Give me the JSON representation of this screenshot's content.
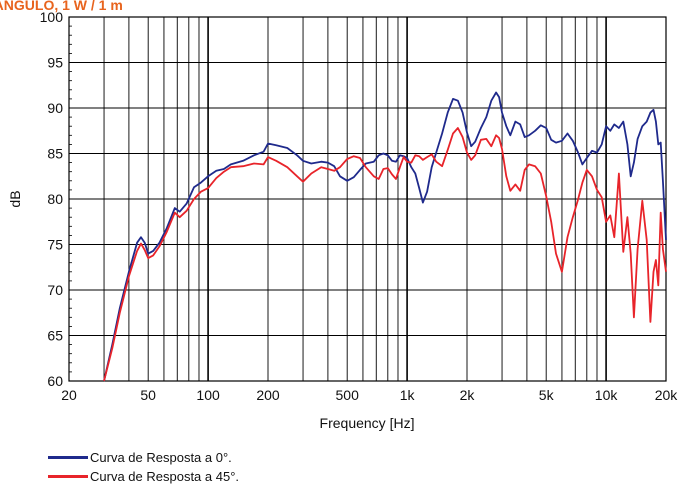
{
  "chart_data": {
    "type": "line",
    "title": "...ÃNGULO, 1 W / 1 m",
    "xlabel": "Frequency [Hz]",
    "ylabel": "dB",
    "xscale": "log",
    "xlim": [
      20,
      20000
    ],
    "ylim": [
      60,
      100
    ],
    "grid": true,
    "legend_position": "bottom-left",
    "x_ticks": [
      {
        "value": 20,
        "label": "20"
      },
      {
        "value": 50,
        "label": "50"
      },
      {
        "value": 100,
        "label": "100"
      },
      {
        "value": 200,
        "label": "200"
      },
      {
        "value": 500,
        "label": "500"
      },
      {
        "value": 1000,
        "label": "1k"
      },
      {
        "value": 2000,
        "label": "2k"
      },
      {
        "value": 5000,
        "label": "5k"
      },
      {
        "value": 10000,
        "label": "10k"
      },
      {
        "value": 20000,
        "label": "20k"
      }
    ],
    "y_ticks": [
      60,
      65,
      70,
      75,
      80,
      85,
      90,
      95,
      100
    ],
    "series": [
      {
        "name": "Curva de Resposta a 0°.",
        "color": "#1f2a8c",
        "points": [
          [
            30,
            60
          ],
          [
            33,
            64
          ],
          [
            36,
            68
          ],
          [
            40,
            72
          ],
          [
            44,
            75.2
          ],
          [
            46,
            75.8
          ],
          [
            48,
            75.2
          ],
          [
            50,
            74
          ],
          [
            53,
            74.3
          ],
          [
            57,
            75.2
          ],
          [
            62,
            76.8
          ],
          [
            68,
            79
          ],
          [
            72,
            78.6
          ],
          [
            78,
            79.5
          ],
          [
            85,
            81.3
          ],
          [
            92,
            81.8
          ],
          [
            100,
            82.5
          ],
          [
            110,
            83.1
          ],
          [
            120,
            83.3
          ],
          [
            130,
            83.8
          ],
          [
            150,
            84.2
          ],
          [
            170,
            84.8
          ],
          [
            190,
            85.2
          ],
          [
            200,
            86.1
          ],
          [
            220,
            85.9
          ],
          [
            250,
            85.6
          ],
          [
            280,
            84.8
          ],
          [
            300,
            84.2
          ],
          [
            330,
            83.9
          ],
          [
            370,
            84.1
          ],
          [
            400,
            84
          ],
          [
            430,
            83.6
          ],
          [
            460,
            82.5
          ],
          [
            500,
            82
          ],
          [
            540,
            82.4
          ],
          [
            580,
            83.2
          ],
          [
            620,
            83.9
          ],
          [
            680,
            84.1
          ],
          [
            720,
            84.8
          ],
          [
            760,
            85
          ],
          [
            800,
            84.8
          ],
          [
            840,
            84.2
          ],
          [
            880,
            84.1
          ],
          [
            920,
            84.8
          ],
          [
            960,
            84.7
          ],
          [
            1000,
            84.5
          ],
          [
            1050,
            83.5
          ],
          [
            1100,
            82.8
          ],
          [
            1150,
            81.2
          ],
          [
            1200,
            79.6
          ],
          [
            1260,
            80.8
          ],
          [
            1330,
            83.5
          ],
          [
            1400,
            85.1
          ],
          [
            1500,
            87.2
          ],
          [
            1600,
            89.5
          ],
          [
            1700,
            91
          ],
          [
            1800,
            90.8
          ],
          [
            1900,
            89.5
          ],
          [
            2000,
            87.3
          ],
          [
            2100,
            85.8
          ],
          [
            2200,
            86.3
          ],
          [
            2350,
            87.8
          ],
          [
            2500,
            89
          ],
          [
            2650,
            90.8
          ],
          [
            2800,
            91.7
          ],
          [
            2900,
            91.2
          ],
          [
            3000,
            89.5
          ],
          [
            3150,
            88
          ],
          [
            3300,
            87
          ],
          [
            3500,
            88.5
          ],
          [
            3700,
            88.2
          ],
          [
            3900,
            86.8
          ],
          [
            4100,
            87
          ],
          [
            4400,
            87.5
          ],
          [
            4700,
            88.1
          ],
          [
            5000,
            87.8
          ],
          [
            5300,
            86.5
          ],
          [
            5600,
            86.2
          ],
          [
            6000,
            86.4
          ],
          [
            6400,
            87.2
          ],
          [
            6800,
            86.4
          ],
          [
            7200,
            85.2
          ],
          [
            7600,
            83.8
          ],
          [
            8000,
            84.5
          ],
          [
            8500,
            85.3
          ],
          [
            9000,
            85.1
          ],
          [
            9500,
            86
          ],
          [
            10000,
            88
          ],
          [
            10500,
            87.5
          ],
          [
            11000,
            88.2
          ],
          [
            11600,
            87.8
          ],
          [
            12200,
            88.5
          ],
          [
            12800,
            86
          ],
          [
            13300,
            82.5
          ],
          [
            13800,
            84
          ],
          [
            14400,
            86.6
          ],
          [
            15200,
            88
          ],
          [
            16000,
            88.5
          ],
          [
            16700,
            89.5
          ],
          [
            17300,
            89.8
          ],
          [
            17800,
            88.5
          ],
          [
            18300,
            86
          ],
          [
            18800,
            86.2
          ],
          [
            19300,
            82
          ],
          [
            20000,
            75.5
          ]
        ]
      },
      {
        "name": "Curva de Resposta a 45°.",
        "color": "#e8242a",
        "points": [
          [
            30,
            60
          ],
          [
            33,
            63.6
          ],
          [
            36,
            67.5
          ],
          [
            40,
            71.5
          ],
          [
            44,
            74.3
          ],
          [
            46,
            75.1
          ],
          [
            48,
            74.4
          ],
          [
            50,
            73.5
          ],
          [
            53,
            73.8
          ],
          [
            57,
            74.8
          ],
          [
            62,
            76.4
          ],
          [
            68,
            78.5
          ],
          [
            72,
            78
          ],
          [
            78,
            78.7
          ],
          [
            85,
            80
          ],
          [
            92,
            80.8
          ],
          [
            100,
            81.2
          ],
          [
            110,
            82.3
          ],
          [
            120,
            83
          ],
          [
            130,
            83.5
          ],
          [
            150,
            83.6
          ],
          [
            170,
            83.9
          ],
          [
            190,
            83.8
          ],
          [
            200,
            84.6
          ],
          [
            220,
            84.2
          ],
          [
            250,
            83.5
          ],
          [
            280,
            82.5
          ],
          [
            300,
            81.9
          ],
          [
            330,
            82.8
          ],
          [
            370,
            83.5
          ],
          [
            400,
            83.3
          ],
          [
            430,
            83.1
          ],
          [
            460,
            83.5
          ],
          [
            500,
            84.4
          ],
          [
            540,
            84.7
          ],
          [
            580,
            84.5
          ],
          [
            620,
            83.5
          ],
          [
            680,
            82.5
          ],
          [
            720,
            82.2
          ],
          [
            760,
            83.3
          ],
          [
            800,
            83.4
          ],
          [
            840,
            82.7
          ],
          [
            880,
            82.2
          ],
          [
            920,
            83.5
          ],
          [
            960,
            84.6
          ],
          [
            1000,
            84.1
          ],
          [
            1050,
            84
          ],
          [
            1100,
            84.8
          ],
          [
            1150,
            84.7
          ],
          [
            1200,
            84.3
          ],
          [
            1260,
            84.6
          ],
          [
            1330,
            84.9
          ],
          [
            1400,
            84.1
          ],
          [
            1500,
            83.6
          ],
          [
            1600,
            85.4
          ],
          [
            1700,
            87.2
          ],
          [
            1800,
            87.8
          ],
          [
            1900,
            86.8
          ],
          [
            2000,
            85.1
          ],
          [
            2100,
            84.3
          ],
          [
            2200,
            84.8
          ],
          [
            2350,
            86.5
          ],
          [
            2500,
            86.6
          ],
          [
            2650,
            85.8
          ],
          [
            2800,
            87
          ],
          [
            2900,
            86.7
          ],
          [
            3000,
            85.5
          ],
          [
            3150,
            82.5
          ],
          [
            3300,
            80.9
          ],
          [
            3500,
            81.6
          ],
          [
            3700,
            80.9
          ],
          [
            3900,
            83.2
          ],
          [
            4100,
            83.8
          ],
          [
            4400,
            83.6
          ],
          [
            4700,
            82.8
          ],
          [
            5000,
            80.3
          ],
          [
            5300,
            77.5
          ],
          [
            5600,
            74
          ],
          [
            6000,
            72
          ],
          [
            6400,
            75.8
          ],
          [
            6800,
            78
          ],
          [
            7200,
            79.8
          ],
          [
            7600,
            81.8
          ],
          [
            8000,
            83.2
          ],
          [
            8500,
            82.5
          ],
          [
            9000,
            81
          ],
          [
            9500,
            80.2
          ],
          [
            10000,
            77.5
          ],
          [
            10500,
            78.2
          ],
          [
            11000,
            75.8
          ],
          [
            11600,
            82.8
          ],
          [
            12200,
            74.2
          ],
          [
            12800,
            78
          ],
          [
            13300,
            74
          ],
          [
            13800,
            67
          ],
          [
            14400,
            74.5
          ],
          [
            15200,
            79.8
          ],
          [
            16000,
            75.5
          ],
          [
            16700,
            66.5
          ],
          [
            17300,
            72
          ],
          [
            17800,
            73.3
          ],
          [
            18300,
            70.5
          ],
          [
            18800,
            78.5
          ],
          [
            19300,
            74.5
          ],
          [
            20000,
            72
          ]
        ]
      }
    ]
  }
}
